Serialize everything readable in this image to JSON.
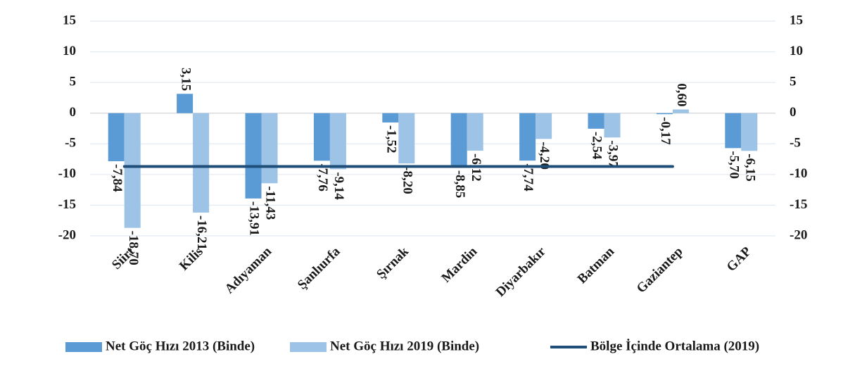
{
  "chart_data": {
    "type": "bar",
    "categories": [
      "Siirt",
      "Kilis",
      "Adıyaman",
      "Şanlıurfa",
      "Şırnak",
      "Mardin",
      "Diyarbakır",
      "Batman",
      "Gaziantep",
      "GAP"
    ],
    "series": [
      {
        "name": "Net Göç Hızı 2013 (Binde)",
        "color": "#5b9bd5",
        "type": "bar",
        "values": [
          -7.84,
          3.15,
          -13.91,
          -7.76,
          -1.52,
          -8.85,
          -7.74,
          -2.54,
          -0.17,
          -5.7
        ],
        "value_labels": [
          "-7,84",
          "3,15",
          "-13,91",
          "-7,76",
          "-1,52",
          "-8,85",
          "-7,74",
          "-2,54",
          "-0,17",
          "-5,70"
        ]
      },
      {
        "name": "Net Göç Hızı 2019 (Binde)",
        "color": "#9dc3e6",
        "type": "bar",
        "values": [
          -18.7,
          -16.21,
          -11.43,
          -9.14,
          -8.2,
          -6.12,
          -4.2,
          -3.97,
          0.6,
          -6.15
        ],
        "value_labels": [
          "-18,70",
          "-16,21",
          "-11,43",
          "-9,14",
          "-8,20",
          "-6,12",
          "-4,20",
          "-3,97",
          "0,60",
          "-6,15"
        ]
      },
      {
        "name": "Bölge İçinde Ortalama (2019)",
        "color": "#1f4e79",
        "type": "line",
        "values": [
          -8.7,
          -8.7,
          -8.7,
          -8.7,
          -8.7,
          -8.7,
          -8.7,
          -8.7,
          -8.7,
          null
        ]
      }
    ],
    "ylim": [
      -20,
      15
    ],
    "yticks": [
      -20,
      -15,
      -10,
      -5,
      0,
      5,
      10,
      15
    ],
    "y2lim": [
      -20,
      15
    ],
    "y2ticks": [
      -20,
      -15,
      -10,
      -5,
      0,
      5,
      10,
      15
    ],
    "grid": true,
    "legend": "bottom"
  }
}
